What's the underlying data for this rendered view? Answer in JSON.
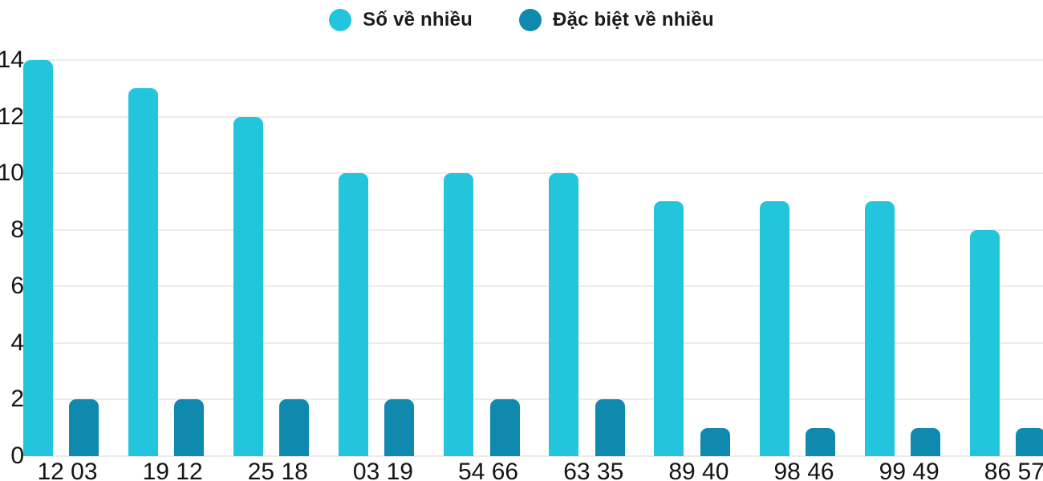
{
  "chart_data": {
    "type": "bar",
    "categories": [
      "12 03",
      "19 12",
      "25 18",
      "03 19",
      "54 66",
      "63 35",
      "89 40",
      "98 46",
      "99 49",
      "86 57"
    ],
    "series": [
      {
        "name": "Số về nhiều",
        "color": "#22C5DC",
        "values": [
          14,
          13,
          12,
          10,
          10,
          10,
          9,
          9,
          9,
          8
        ]
      },
      {
        "name": "Đặc biệt về nhiều",
        "color": "#0F89AE",
        "values": [
          2,
          2,
          2,
          2,
          2,
          2,
          1,
          1,
          1,
          1
        ]
      }
    ],
    "title": "",
    "xlabel": "",
    "ylabel": "",
    "ylim": [
      0,
      14
    ],
    "yticks": [
      0,
      2,
      4,
      6,
      8,
      10,
      12,
      14
    ],
    "grid": true,
    "legend_position": "top-center"
  },
  "colors": {
    "background": "#ffffff",
    "gridline": "#ebebeb",
    "text": "#141414"
  }
}
